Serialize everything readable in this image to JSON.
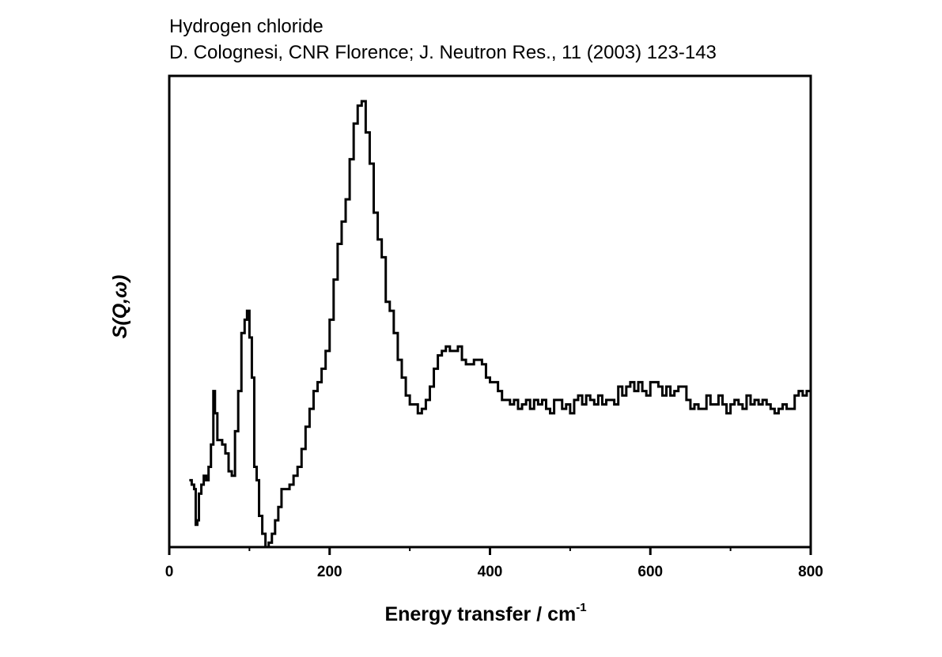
{
  "chart_data": {
    "type": "line",
    "title": "Hydrogen chloride",
    "subtitle": "D. Colognesi, CNR Florence; J. Neutron Res., 11 (2003) 123-143",
    "xlabel": "Energy transfer / cm",
    "xlabel_superscript": "-1",
    "ylabel": "S(Q,ω)",
    "xlim": [
      0,
      800
    ],
    "ylim": [
      0,
      1
    ],
    "x_ticks": [
      0,
      200,
      400,
      600,
      800
    ],
    "y_ticks_shown": false,
    "grid": false,
    "line_color": "#000000",
    "step": true,
    "series": [
      {
        "x": [
          25,
          28,
          31,
          33,
          35,
          37,
          40,
          43,
          46,
          49,
          52,
          55,
          57,
          60,
          63,
          66,
          70,
          74,
          78,
          82,
          86,
          90,
          94,
          97,
          100,
          103,
          106,
          109,
          112,
          116,
          120,
          124,
          128,
          132,
          136,
          140,
          145,
          150,
          155,
          160,
          165,
          170,
          175,
          180,
          185,
          190,
          195,
          200,
          205,
          210,
          215,
          220,
          225,
          230,
          235,
          240,
          245,
          250,
          255,
          260,
          265,
          270,
          275,
          280,
          285,
          290,
          295,
          300,
          305,
          310,
          315,
          320,
          325,
          330,
          335,
          340,
          345,
          350,
          355,
          360,
          365,
          370,
          375,
          380,
          385,
          390,
          395,
          400,
          405,
          410,
          415,
          420,
          425,
          430,
          435,
          440,
          445,
          450,
          455,
          460,
          465,
          470,
          475,
          480,
          485,
          490,
          495,
          500,
          505,
          510,
          515,
          520,
          525,
          530,
          535,
          540,
          545,
          550,
          555,
          560,
          565,
          570,
          575,
          580,
          585,
          590,
          595,
          600,
          605,
          610,
          615,
          620,
          625,
          630,
          635,
          640,
          645,
          650,
          655,
          660,
          665,
          670,
          675,
          680,
          685,
          690,
          695,
          700,
          705,
          710,
          715,
          720,
          725,
          730,
          735,
          740,
          745,
          750,
          755,
          760,
          765,
          770,
          775,
          780,
          785,
          790,
          795,
          800
        ],
        "y": [
          0.15,
          0.14,
          0.13,
          0.05,
          0.06,
          0.12,
          0.14,
          0.16,
          0.15,
          0.18,
          0.23,
          0.35,
          0.3,
          0.24,
          0.24,
          0.23,
          0.21,
          0.17,
          0.16,
          0.26,
          0.35,
          0.48,
          0.51,
          0.53,
          0.47,
          0.38,
          0.18,
          0.15,
          0.07,
          0.03,
          0.0,
          0.01,
          0.03,
          0.06,
          0.09,
          0.13,
          0.13,
          0.14,
          0.16,
          0.18,
          0.22,
          0.27,
          0.31,
          0.35,
          0.37,
          0.4,
          0.44,
          0.51,
          0.6,
          0.68,
          0.73,
          0.78,
          0.87,
          0.95,
          0.99,
          1.0,
          0.93,
          0.86,
          0.75,
          0.69,
          0.65,
          0.55,
          0.53,
          0.48,
          0.42,
          0.38,
          0.34,
          0.32,
          0.32,
          0.3,
          0.31,
          0.33,
          0.36,
          0.4,
          0.43,
          0.44,
          0.45,
          0.44,
          0.44,
          0.45,
          0.42,
          0.41,
          0.41,
          0.42,
          0.42,
          0.41,
          0.38,
          0.37,
          0.37,
          0.35,
          0.33,
          0.33,
          0.32,
          0.33,
          0.31,
          0.32,
          0.33,
          0.31,
          0.33,
          0.32,
          0.33,
          0.31,
          0.3,
          0.33,
          0.33,
          0.31,
          0.32,
          0.3,
          0.33,
          0.34,
          0.32,
          0.34,
          0.33,
          0.32,
          0.34,
          0.32,
          0.33,
          0.33,
          0.32,
          0.36,
          0.34,
          0.36,
          0.37,
          0.35,
          0.37,
          0.35,
          0.34,
          0.37,
          0.37,
          0.36,
          0.34,
          0.36,
          0.34,
          0.35,
          0.36,
          0.36,
          0.33,
          0.31,
          0.32,
          0.31,
          0.31,
          0.34,
          0.32,
          0.32,
          0.34,
          0.32,
          0.3,
          0.32,
          0.33,
          0.32,
          0.31,
          0.34,
          0.32,
          0.33,
          0.32,
          0.33,
          0.32,
          0.31,
          0.3,
          0.31,
          0.32,
          0.31,
          0.31,
          0.34,
          0.35,
          0.34,
          0.35,
          0.34
        ]
      }
    ]
  }
}
